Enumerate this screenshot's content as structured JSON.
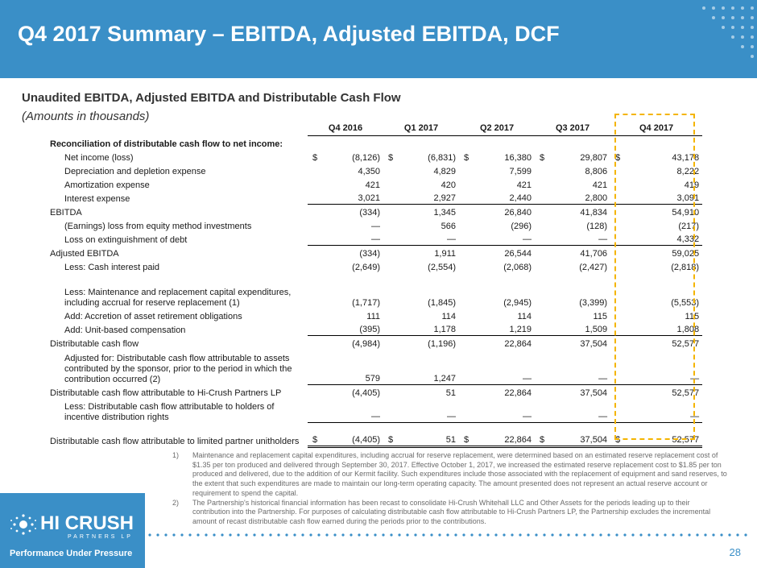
{
  "header": {
    "title": "Q4 2017 Summary – EBITDA, Adjusted EBITDA, DCF"
  },
  "section": {
    "subtitle": "Unaudited EBITDA, Adjusted EBITDA and Distributable Cash Flow",
    "amounts_note": "(Amounts in thousands)"
  },
  "table": {
    "columns": [
      "Q4 2016",
      "Q1 2017",
      "Q2 2017",
      "Q3 2017",
      "Q4 2017"
    ],
    "section_heading": "Reconciliation of distributable cash flow to net income:",
    "rows": [
      {
        "label": "Net income (loss)",
        "cur": "$",
        "values": [
          "(8,126)",
          "(6,831)",
          "16,380",
          "29,807",
          "43,178"
        ]
      },
      {
        "label": "Depreciation and depletion expense",
        "values": [
          "4,350",
          "4,829",
          "7,599",
          "8,806",
          "8,222"
        ]
      },
      {
        "label": "Amortization expense",
        "values": [
          "421",
          "420",
          "421",
          "421",
          "419"
        ]
      },
      {
        "label": "Interest expense",
        "values": [
          "3,021",
          "2,927",
          "2,440",
          "2,800",
          "3,091"
        ]
      },
      {
        "label": "EBITDA",
        "values": [
          "(334)",
          "1,345",
          "26,840",
          "41,834",
          "54,910"
        ]
      },
      {
        "label": "(Earnings) loss from equity method investments",
        "values": [
          "—",
          "566",
          "(296)",
          "(128)",
          "(217)"
        ]
      },
      {
        "label": "Loss on extinguishment of debt",
        "values": [
          "—",
          "—",
          "—",
          "—",
          "4,332"
        ]
      },
      {
        "label": "Adjusted EBITDA",
        "values": [
          "(334)",
          "1,911",
          "26,544",
          "41,706",
          "59,025"
        ]
      },
      {
        "label": "Less: Cash interest paid",
        "values": [
          "(2,649)",
          "(2,554)",
          "(2,068)",
          "(2,427)",
          "(2,818)"
        ]
      },
      {
        "label": "Less: Maintenance and replacement capital expenditures, including accrual for reserve replacement (1)",
        "values": [
          "(1,717)",
          "(1,845)",
          "(2,945)",
          "(3,399)",
          "(5,553)"
        ]
      },
      {
        "label": "Add: Accretion of asset retirement obligations",
        "values": [
          "111",
          "114",
          "114",
          "115",
          "115"
        ]
      },
      {
        "label": "Add: Unit-based compensation",
        "values": [
          "(395)",
          "1,178",
          "1,219",
          "1,509",
          "1,808"
        ]
      },
      {
        "label": "Distributable cash flow",
        "values": [
          "(4,984)",
          "(1,196)",
          "22,864",
          "37,504",
          "52,577"
        ]
      },
      {
        "label": "Adjusted for: Distributable cash flow attributable to assets contributed by the sponsor, prior to the period in which the contribution occurred (2)",
        "values": [
          "579",
          "1,247",
          "—",
          "—",
          "—"
        ]
      },
      {
        "label": "Distributable cash flow attributable to Hi-Crush Partners LP",
        "values": [
          "(4,405)",
          "51",
          "22,864",
          "37,504",
          "52,577"
        ]
      },
      {
        "label": "Less: Distributable cash flow attributable to holders of incentive distribution rights",
        "values": [
          "—",
          "—",
          "—",
          "—",
          "—"
        ]
      },
      {
        "label": "Distributable cash flow attributable to limited partner unitholders",
        "cur": "$",
        "values": [
          "(4,405)",
          "51",
          "22,864",
          "37,504",
          "52,577"
        ]
      }
    ]
  },
  "footnotes": [
    {
      "num": "1)",
      "text": "Maintenance and replacement capital expenditures, including accrual for reserve replacement, were determined based on an estimated reserve replacement cost of $1.35 per ton produced and delivered through September 30, 2017.  Effective October 1, 2017, we increased the estimated reserve replacement cost to $1.85 per ton produced and delivered, due to the addition of our Kermit facility.  Such expenditures include those associated with the replacement of equipment and sand reserves, to the extent that such expenditures are made to maintain our long-term operating capacity. The amount presented does not represent an actual reserve account or requirement to spend the capital."
    },
    {
      "num": "2)",
      "text": "The Partnership's historical financial information has been recast to consolidate Hi-Crush Whitehall LLC and Other Assets for the periods leading up to their contribution into the Partnership.  For purposes of calculating distributable cash flow attributable to Hi-Crush Partners LP, the Partnership excludes the incremental amount of recast distributable cash flow earned during the periods prior to the contributions."
    }
  ],
  "logo": {
    "name": "HI CRUSH",
    "sub": "PARTNERS LP",
    "tagline": "Performance Under Pressure"
  },
  "page": {
    "number": "28"
  },
  "colors": {
    "brand_blue": "#3a8fc7",
    "highlight": "#f4b400"
  }
}
